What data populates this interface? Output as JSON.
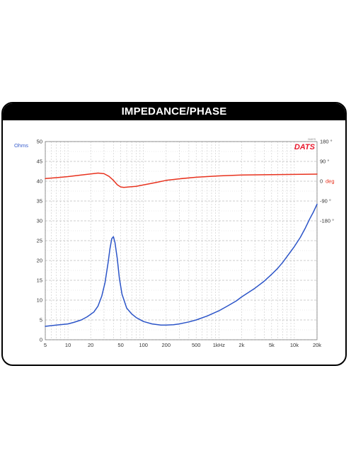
{
  "header": {
    "title": "IMPEDANCE/PHASE"
  },
  "chart_data": {
    "type": "line",
    "title": "IMPEDANCE/PHASE",
    "watermark": "DATS",
    "watermark_small": "DAYS",
    "xscale": "log",
    "xlim": [
      5,
      20000
    ],
    "x_ticks": [
      5,
      10,
      20,
      50,
      100,
      200,
      500,
      1000,
      2000,
      5000,
      10000,
      20000
    ],
    "x_tick_labels": [
      "5",
      "10",
      "20",
      "50",
      "100",
      "200",
      "500",
      "1kHz",
      "2k",
      "5k",
      "10k",
      "20k"
    ],
    "y_left": {
      "label": "Ohms",
      "color": "#3a5fcd",
      "lim": [
        0,
        50
      ],
      "ticks": [
        0,
        5,
        10,
        15,
        20,
        25,
        30,
        35,
        40,
        45,
        50
      ],
      "tick_labels": [
        "0",
        "5",
        "10",
        "15",
        "20",
        "25",
        "30",
        "35",
        "40",
        "45",
        "50"
      ]
    },
    "y_right": {
      "label": "deg",
      "color": "#e8321e",
      "ticks": [
        180,
        90,
        0,
        -90,
        -180
      ],
      "tick_labels": [
        "180 °",
        "90 °",
        "0",
        "-90 °",
        "-180 °"
      ]
    },
    "grid": true,
    "series": [
      {
        "color": "#2b54c8",
        "axis": "left",
        "x": [
          5,
          7,
          10,
          12,
          15,
          18,
          22,
          25,
          28,
          31,
          34,
          36,
          38,
          40,
          42,
          45,
          48,
          52,
          60,
          70,
          80,
          100,
          130,
          170,
          200,
          250,
          300,
          400,
          500,
          700,
          1000,
          1300,
          1700,
          2000,
          3000,
          4000,
          5000,
          6000,
          7000,
          8000,
          10000,
          12000,
          14000,
          16000,
          18000,
          20000
        ],
        "y": [
          3.4,
          3.7,
          4.0,
          4.4,
          5.0,
          5.8,
          7.0,
          8.5,
          11.0,
          14.5,
          19.5,
          23.0,
          25.5,
          26.0,
          24.5,
          20.5,
          15.5,
          11.5,
          8.0,
          6.5,
          5.6,
          4.6,
          4.0,
          3.7,
          3.7,
          3.8,
          4.0,
          4.5,
          5.0,
          6.0,
          7.3,
          8.5,
          9.8,
          10.8,
          13.0,
          14.8,
          16.5,
          18.0,
          19.5,
          21.0,
          23.5,
          25.8,
          28.2,
          30.5,
          32.3,
          34.2
        ]
      },
      {
        "color": "#e8321e",
        "axis": "right",
        "x": [
          5,
          7,
          10,
          15,
          20,
          25,
          30,
          35,
          40,
          45,
          50,
          55,
          60,
          70,
          80,
          100,
          150,
          200,
          300,
          500,
          1000,
          2000,
          5000,
          10000,
          20000
        ],
        "y": [
          12,
          16,
          21,
          28,
          33,
          37,
          34,
          22,
          4,
          -16,
          -26,
          -28,
          -27,
          -25,
          -23,
          -17,
          -5,
          4,
          11,
          18,
          24,
          28,
          30,
          31,
          32
        ]
      }
    ]
  }
}
